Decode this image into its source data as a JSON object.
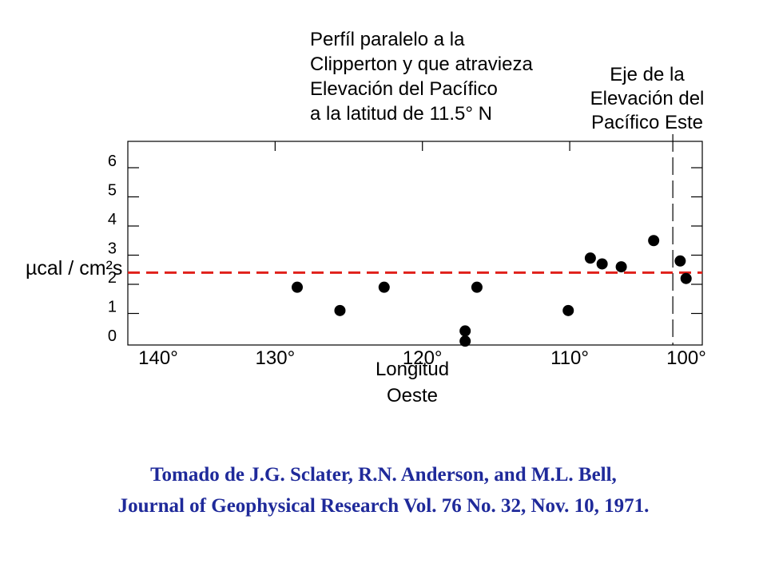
{
  "chart_data": {
    "type": "scatter",
    "title_lines": [
      "Perfíl paralelo a la",
      "Clipperton y que atravieza",
      "Elevación del Pacífico",
      "a la latitud de 11.5° N"
    ],
    "axis_annotation_lines": [
      "Eje de la",
      "Elevación del",
      "Pacífico Este"
    ],
    "xlabel_lines": [
      "Longitud",
      "Oeste"
    ],
    "ylabel": "µcal / cm²s",
    "xlim": [
      140,
      101
    ],
    "ylim": [
      0,
      7
    ],
    "x_ticks": [
      140,
      130,
      120,
      110,
      100
    ],
    "x_tick_labels": [
      "140°",
      "130°",
      "120°",
      "110°",
      "100°"
    ],
    "y_ticks": [
      0,
      1,
      2,
      3,
      4,
      5,
      6
    ],
    "y_tick_labels": [
      "0",
      "1",
      "2",
      "3",
      "4",
      "5",
      "6"
    ],
    "mean_line": {
      "y": 2.4,
      "color": "#e0201a",
      "style": "dashed"
    },
    "ridge_axis_x": 103,
    "series": [
      {
        "points": [
          [
            128.5,
            1.9
          ],
          [
            125.6,
            1.1
          ],
          [
            122.6,
            1.9
          ],
          [
            117.1,
            0.4
          ],
          [
            117.1,
            0.05
          ],
          [
            116.3,
            1.9
          ],
          [
            110.1,
            1.1
          ],
          [
            108.6,
            2.9
          ],
          [
            107.8,
            2.7
          ],
          [
            106.5,
            2.6
          ],
          [
            104.3,
            3.5
          ],
          [
            102.5,
            2.8
          ],
          [
            102.1,
            2.2
          ]
        ],
        "color": "#000000"
      }
    ]
  },
  "citation": {
    "line1": "Tomado de J.G. Sclater, R.N. Anderson, and M.L. Bell,",
    "line2": "Journal of Geophysical Research Vol. 76 No. 32, Nov. 10, 1971."
  }
}
